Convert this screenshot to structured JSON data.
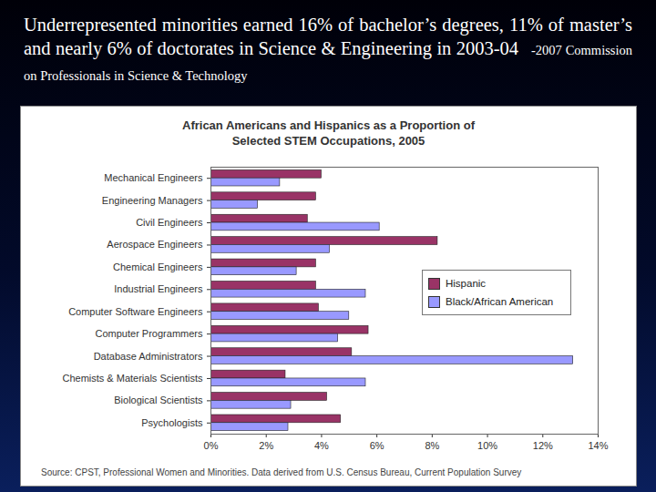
{
  "slide": {
    "heading": "Underrepresented minorities earned 16% of bachelor’s degrees, 11% of master’s and nearly 6% of doctorates in Science & Engineering in 2003-04",
    "source_note": "-2007 Commission on Professionals in Science & Technology"
  },
  "chart_data": {
    "type": "bar",
    "orientation": "horizontal",
    "title": "African Americans and Hispanics as a Proportion of Selected STEM Occupations, 2005",
    "caption": "Source: CPST, Professional Women and Minorities. Data derived from U.S. Census Bureau, Current Population Survey",
    "categories": [
      "Mechanical Engineers",
      "Engineering Managers",
      "Civil Engineers",
      "Aerospace Engineers",
      "Chemical Engineers",
      "Industrial Engineers",
      "Computer Software Engineers",
      "Computer Programmers",
      "Database Administrators",
      "Chemists & Materials Scientists",
      "Biological Scientists",
      "Psychologists"
    ],
    "series": [
      {
        "name": "Hispanic",
        "color": "#993366",
        "values": [
          4.0,
          3.8,
          3.5,
          8.2,
          3.8,
          3.8,
          3.9,
          5.7,
          5.1,
          2.7,
          4.2,
          4.7
        ]
      },
      {
        "name": "Black/African American",
        "color": "#9999ff",
        "values": [
          2.5,
          1.7,
          6.1,
          4.3,
          3.1,
          5.6,
          5.0,
          4.6,
          13.1,
          5.6,
          2.9,
          2.8
        ]
      }
    ],
    "xlim": [
      0,
      14
    ],
    "xticks": [
      {
        "value": 0,
        "label": "0%"
      },
      {
        "value": 2,
        "label": "2%"
      },
      {
        "value": 4,
        "label": "4%"
      },
      {
        "value": 6,
        "label": "6%"
      },
      {
        "value": 8,
        "label": "8%"
      },
      {
        "value": 10,
        "label": "10%"
      },
      {
        "value": 12,
        "label": "12%"
      },
      {
        "value": 14,
        "label": "14%"
      }
    ],
    "grid": false,
    "legend": "right"
  }
}
